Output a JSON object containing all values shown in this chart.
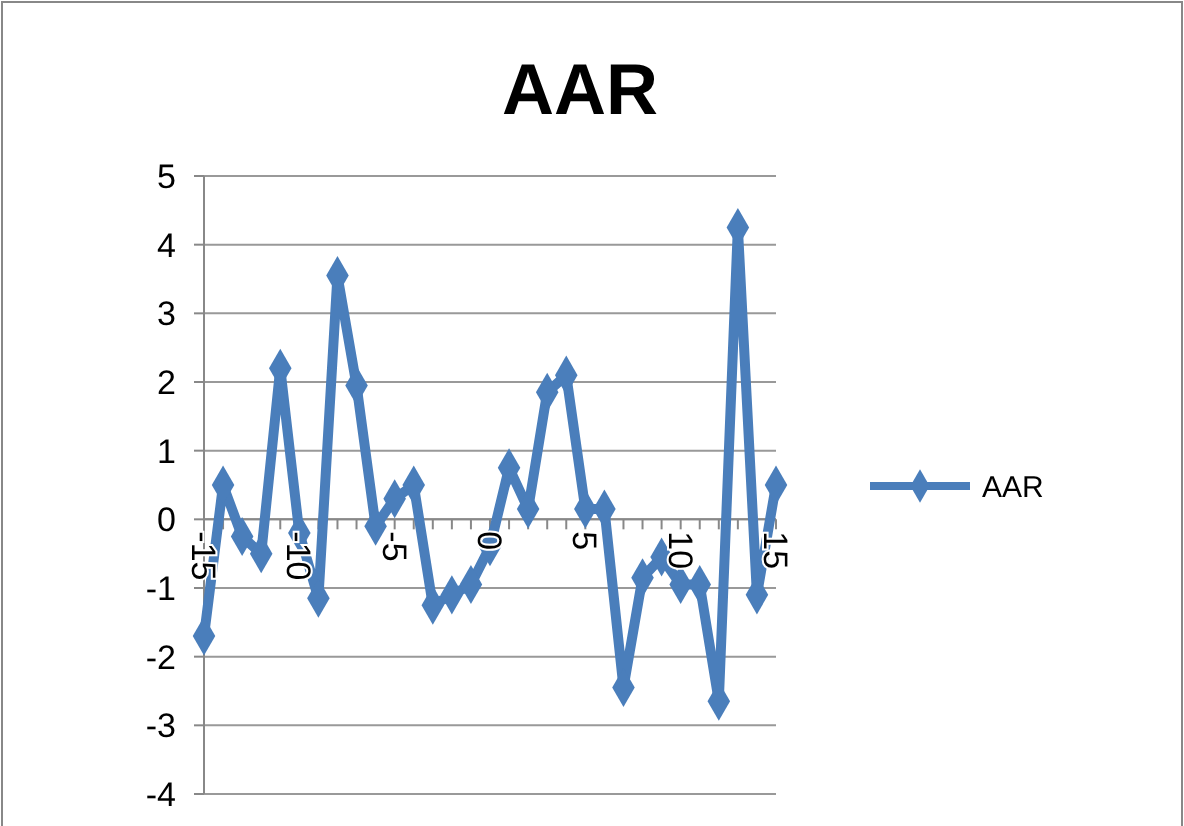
{
  "chart_data": {
    "type": "line",
    "title": "AAR",
    "x": [
      -15,
      -14,
      -13,
      -12,
      -11,
      -10,
      -9,
      -8,
      -7,
      -6,
      -5,
      -4,
      -3,
      -2,
      -1,
      0,
      1,
      2,
      3,
      4,
      5,
      6,
      7,
      8,
      9,
      10,
      11,
      12,
      13,
      14,
      15
    ],
    "series": [
      {
        "name": "AAR",
        "color": "#4a7ebb",
        "values": [
          -1.7,
          0.5,
          -0.25,
          -0.5,
          2.2,
          -0.2,
          -1.15,
          3.55,
          1.95,
          -0.1,
          0.3,
          0.5,
          -1.25,
          -1.1,
          -0.95,
          -0.4,
          0.75,
          0.15,
          1.85,
          2.1,
          0.15,
          0.15,
          -2.45,
          -0.85,
          -0.55,
          -0.95,
          -0.95,
          -2.65,
          4.25,
          -1.1,
          0.5
        ]
      }
    ],
    "xlim": [
      -15,
      15
    ],
    "xticks": [
      -15,
      {
        "value": -14,
        "label": null
      },
      {
        "value": -13,
        "label": null
      },
      {
        "value": -12,
        "label": null
      },
      {
        "value": -11,
        "label": null
      },
      -10,
      {
        "value": -9,
        "label": null
      },
      {
        "value": -8,
        "label": null
      },
      {
        "value": -7,
        "label": null
      },
      {
        "value": -6,
        "label": null
      },
      -5,
      {
        "value": -4,
        "label": null
      },
      {
        "value": -3,
        "label": null
      },
      {
        "value": -2,
        "label": null
      },
      {
        "value": -1,
        "label": null
      },
      0,
      {
        "value": 1,
        "label": null
      },
      {
        "value": 2,
        "label": null
      },
      {
        "value": 3,
        "label": null
      },
      {
        "value": 4,
        "label": null
      },
      5,
      {
        "value": 6,
        "label": null
      },
      {
        "value": 7,
        "label": null
      },
      {
        "value": 8,
        "label": null
      },
      {
        "value": 9,
        "label": null
      },
      10,
      {
        "value": 11,
        "label": null
      },
      {
        "value": 12,
        "label": null
      },
      {
        "value": 13,
        "label": null
      },
      {
        "value": 14,
        "label": null
      },
      15
    ],
    "ylim": [
      -4,
      5
    ],
    "yticks": [
      -4,
      -3,
      -2,
      -1,
      0,
      1,
      2,
      3,
      4,
      5
    ],
    "grid": "y",
    "legend": "right",
    "marker": "diamond",
    "line_style": "solid"
  }
}
